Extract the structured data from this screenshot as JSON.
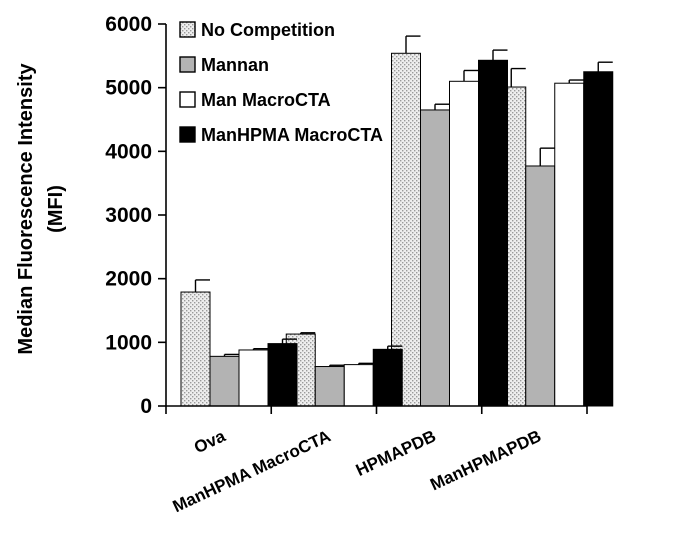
{
  "chart_data": {
    "type": "bar",
    "title": "",
    "xlabel": "",
    "ylabel_lines": [
      "Median Fluorescence Intensity",
      "(MFI)"
    ],
    "ylim": [
      0,
      6000
    ],
    "yticks": [
      "0",
      "1000",
      "2000",
      "3000",
      "4000",
      "5000",
      "6000"
    ],
    "categories": [
      "Ova",
      "ManHPMA MacroCTA",
      "HPMAPDB",
      "ManHPMAPDB"
    ],
    "series": [
      {
        "name": "No Competition",
        "values": [
          1790,
          1130,
          5540,
          5010
        ],
        "errors": [
          190,
          20,
          270,
          290
        ],
        "color": "#e0e0e0",
        "pattern": "dotted"
      },
      {
        "name": "Mannan",
        "values": [
          780,
          620,
          4650,
          3770
        ],
        "errors": [
          30,
          20,
          90,
          280
        ],
        "color": "#b3b3b3",
        "pattern": "solid"
      },
      {
        "name": "Man MacroCTA",
        "values": [
          880,
          650,
          5100,
          5070
        ],
        "errors": [
          20,
          20,
          170,
          50
        ],
        "color": "#ffffff",
        "pattern": "solid"
      },
      {
        "name": "ManHPMA MacroCTA",
        "values": [
          980,
          890,
          5430,
          5250
        ],
        "errors": [
          70,
          50,
          160,
          150
        ],
        "color": "#000000",
        "pattern": "solid"
      }
    ],
    "legend": "top-left",
    "grid": false
  }
}
